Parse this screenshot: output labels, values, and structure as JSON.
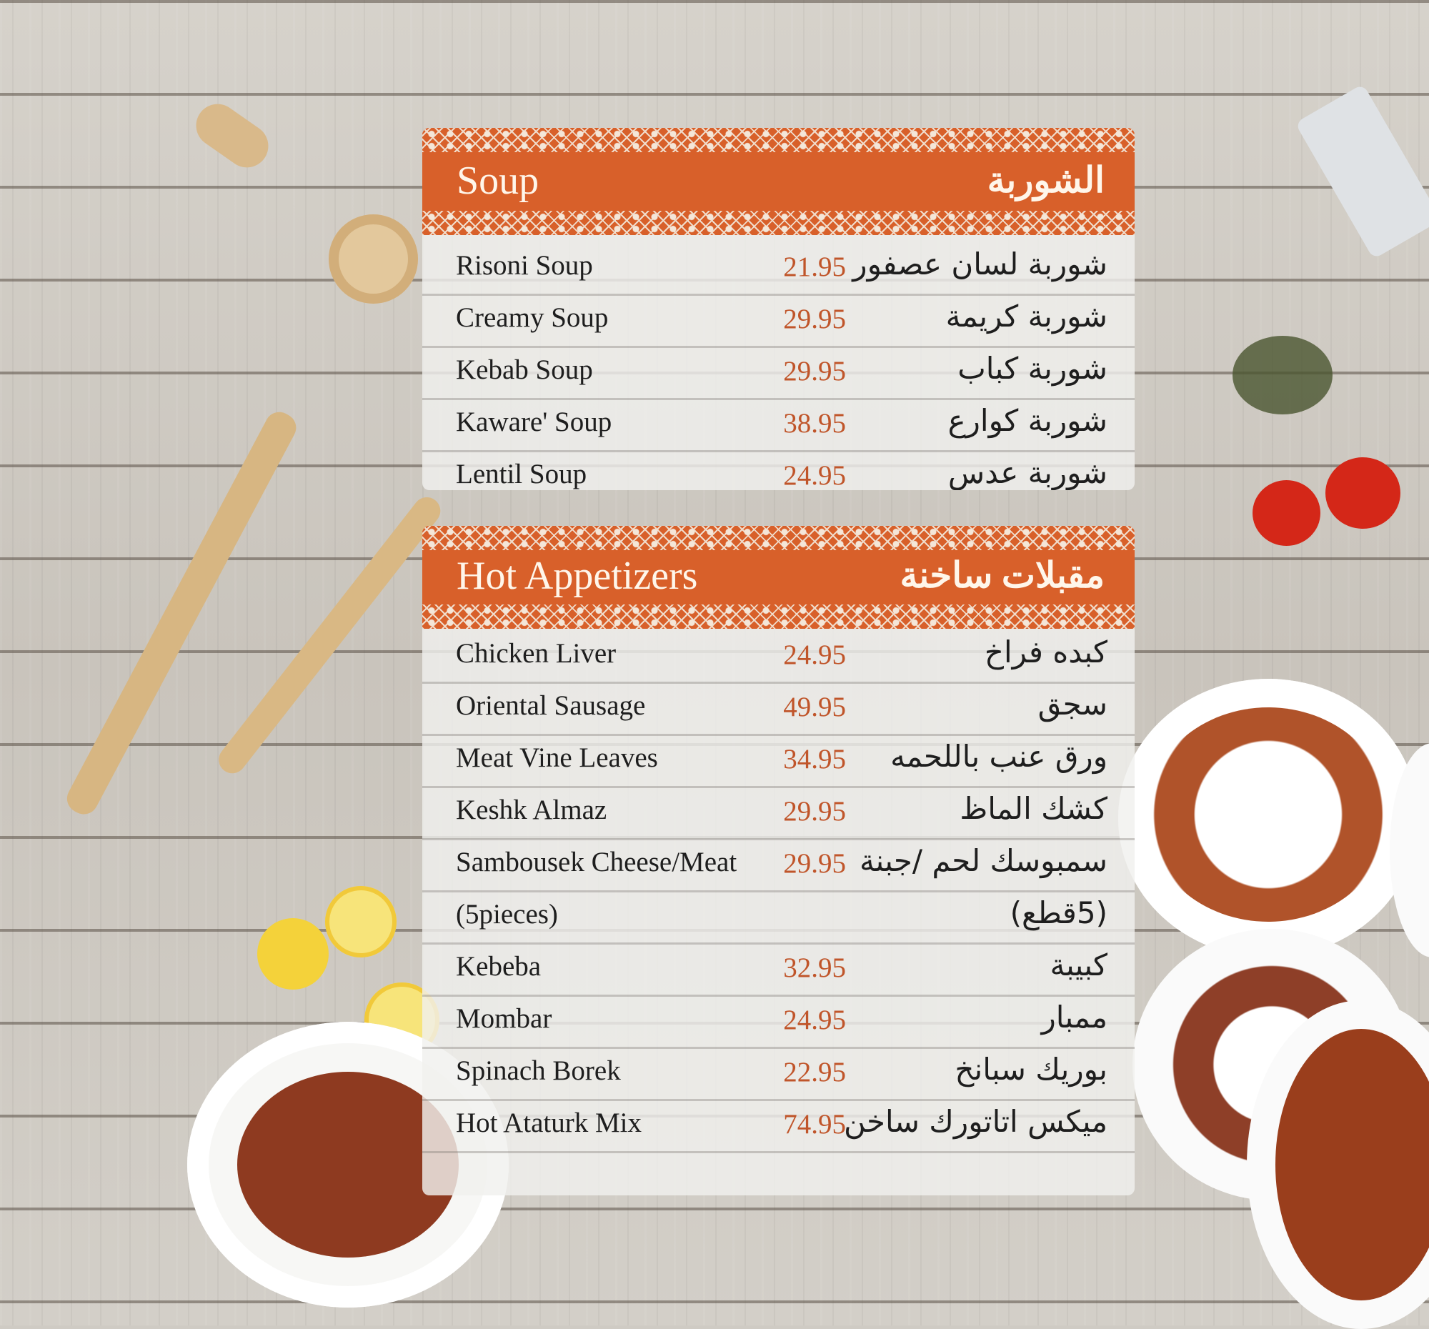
{
  "colors": {
    "header": "#d8602a",
    "price": "#c0552a",
    "text": "#1e1e1e"
  },
  "soup": {
    "title": "Soup",
    "title_ar": "الشوربة",
    "items": [
      {
        "en": "Risoni Soup",
        "price": "21.95",
        "ar": "شوربة لسان عصفور"
      },
      {
        "en": "Creamy Soup",
        "price": "29.95",
        "ar": "شوربة كريمة"
      },
      {
        "en": "Kebab Soup",
        "price": "29.95",
        "ar": "شوربة كباب"
      },
      {
        "en": "Kaware' Soup",
        "price": "38.95",
        "ar": "شوربة كوارع"
      },
      {
        "en": "Lentil Soup",
        "price": "24.95",
        "ar": "شوربة عدس"
      }
    ]
  },
  "hot": {
    "title": "Hot Appetizers",
    "title_ar": "مقبلات ساخنة",
    "items": [
      {
        "en": "Chicken Liver",
        "price": "24.95",
        "ar": "كبده فراخ"
      },
      {
        "en": "Oriental Sausage",
        "price": "49.95",
        "ar": "سجق"
      },
      {
        "en": "Meat Vine Leaves",
        "price": "34.95",
        "ar": "ورق عنب باللحمه"
      },
      {
        "en": "Keshk Almaz",
        "price": "29.95",
        "ar": "كشك الماظ"
      },
      {
        "en": "Sambousek Cheese/Meat",
        "price": "29.95",
        "ar": "سمبوسك لحم /جبنة"
      },
      {
        "en": "(5pieces)",
        "price": "",
        "ar": "(5قطع)"
      },
      {
        "en": "Kebeba",
        "price": "32.95",
        "ar": "كبيبة"
      },
      {
        "en": "Mombar",
        "price": "24.95",
        "ar": "ممبار"
      },
      {
        "en": "Spinach Borek",
        "price": "22.95",
        "ar": "بوريك سبانخ"
      },
      {
        "en": "Hot Ataturk Mix",
        "price": "74.95",
        "ar": "ميكس اتاتورك ساخن"
      }
    ]
  }
}
